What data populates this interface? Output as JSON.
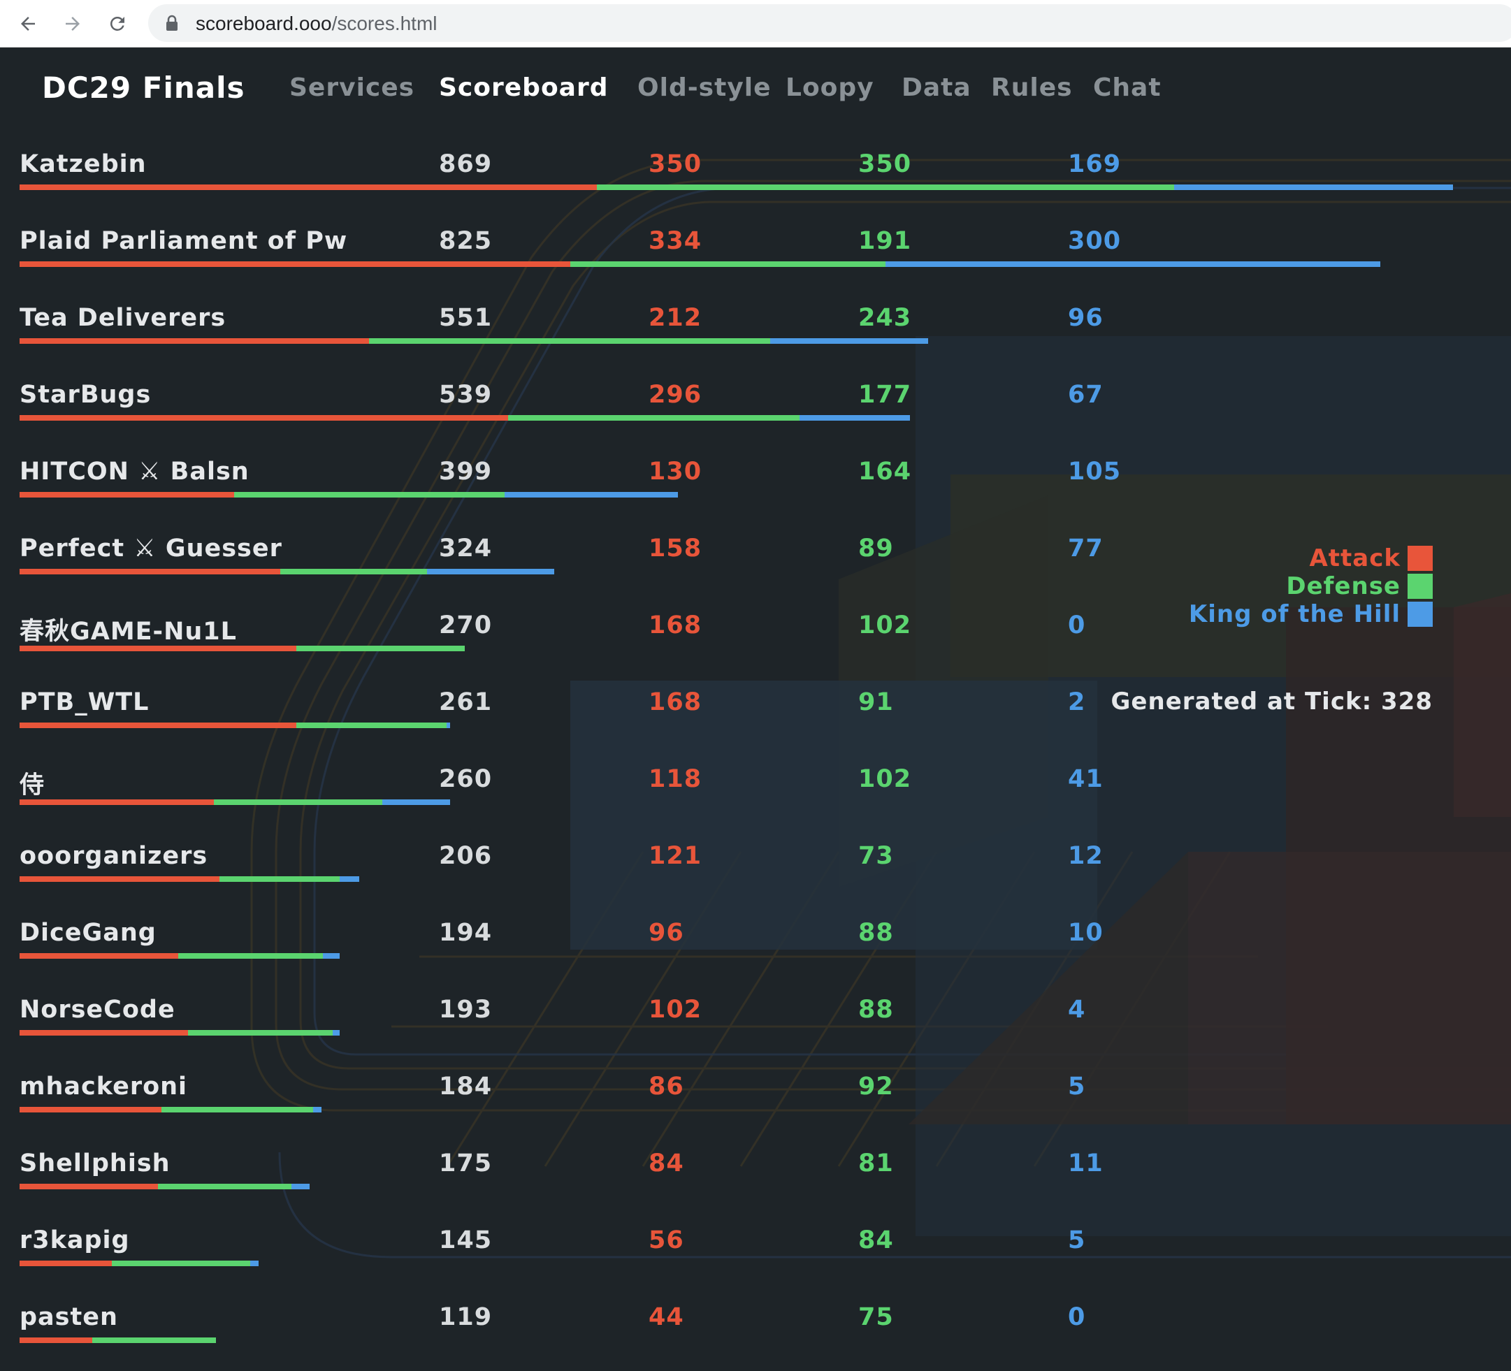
{
  "browser": {
    "url_host": "scoreboard.ooo",
    "url_path": "/scores.html"
  },
  "nav": {
    "brand": "DC29 Finals",
    "links": [
      "Services",
      "Scoreboard",
      "Old-style",
      "Loopy",
      "Data",
      "Rules",
      "Chat"
    ],
    "active": "Scoreboard"
  },
  "colors": {
    "attack": "#e8553a",
    "defense": "#5bd46f",
    "koh": "#4d9be6",
    "background": "#1e2428"
  },
  "chart_data": {
    "type": "bar",
    "stacked": true,
    "title": "",
    "categories": [
      "Katzebin",
      "Plaid Parliament of Pw",
      "Tea Deliverers",
      "StarBugs",
      "HITCON ⚔ Balsn",
      "Perfect ⚔ Guesser",
      "春秋GAME-Nu1L",
      "PTB_WTL",
      "侍",
      "ooorganizers",
      "DiceGang",
      "NorseCode",
      "mhackeroni",
      "Shellphish",
      "r3kapig",
      "pasten"
    ],
    "totals": [
      869,
      825,
      551,
      539,
      399,
      324,
      270,
      261,
      260,
      206,
      194,
      193,
      184,
      175,
      145,
      119
    ],
    "series": [
      {
        "name": "Attack",
        "values": [
          350,
          334,
          212,
          296,
          130,
          158,
          168,
          168,
          118,
          121,
          96,
          102,
          86,
          84,
          56,
          44
        ]
      },
      {
        "name": "Defense",
        "values": [
          350,
          191,
          243,
          177,
          164,
          89,
          102,
          91,
          102,
          73,
          88,
          88,
          92,
          81,
          84,
          75
        ]
      },
      {
        "name": "King of the Hill",
        "values": [
          169,
          300,
          96,
          67,
          105,
          77,
          0,
          2,
          41,
          12,
          10,
          4,
          5,
          11,
          5,
          0
        ]
      }
    ],
    "legend": [
      "Attack",
      "Defense",
      "King of the Hill"
    ],
    "legend_position": "right"
  },
  "footer": {
    "tick_text": "Generated at Tick: 328"
  }
}
